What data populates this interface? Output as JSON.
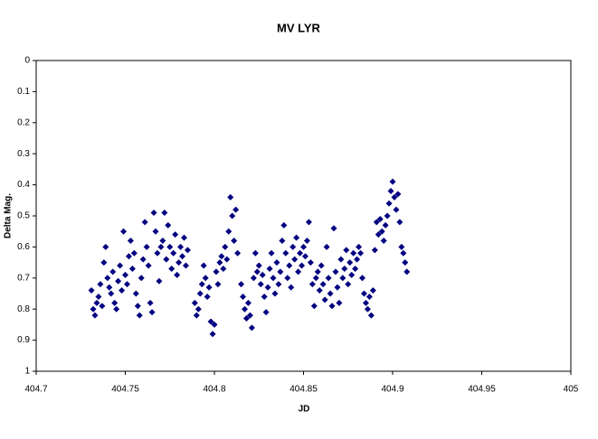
{
  "chart_data": {
    "type": "scatter",
    "title": "MV LYR",
    "x_label": "JD",
    "y_label": "Delta Mag.",
    "color": "#000080",
    "marker": "diamond",
    "invert_y": true,
    "grid": false,
    "xlim": [
      404.7,
      405
    ],
    "xticks": [
      404.7,
      404.75,
      404.8,
      404.85,
      404.9,
      404.95,
      405
    ],
    "ylim": [
      0,
      1
    ],
    "yticks": [
      0,
      0.1,
      0.2,
      0.3,
      0.4,
      0.5,
      0.6,
      0.7,
      0.8,
      0.9,
      1
    ],
    "x": [
      404.731,
      404.732,
      404.733,
      404.734,
      404.735,
      404.736,
      404.737,
      404.738,
      404.739,
      404.74,
      404.741,
      404.742,
      404.743,
      404.744,
      404.745,
      404.746,
      404.747,
      404.748,
      404.749,
      404.75,
      404.751,
      404.752,
      404.753,
      404.754,
      404.755,
      404.756,
      404.757,
      404.758,
      404.759,
      404.76,
      404.761,
      404.762,
      404.763,
      404.764,
      404.765,
      404.766,
      404.767,
      404.768,
      404.769,
      404.77,
      404.771,
      404.772,
      404.773,
      404.774,
      404.775,
      404.776,
      404.777,
      404.778,
      404.779,
      404.78,
      404.781,
      404.782,
      404.783,
      404.784,
      404.785,
      404.789,
      404.79,
      404.791,
      404.792,
      404.793,
      404.794,
      404.795,
      404.796,
      404.797,
      404.798,
      404.799,
      404.8,
      404.801,
      404.802,
      404.803,
      404.804,
      404.805,
      404.806,
      404.807,
      404.808,
      404.809,
      404.81,
      404.811,
      404.812,
      404.813,
      404.815,
      404.816,
      404.817,
      404.818,
      404.819,
      404.82,
      404.821,
      404.822,
      404.823,
      404.824,
      404.825,
      404.826,
      404.827,
      404.828,
      404.829,
      404.83,
      404.831,
      404.832,
      404.833,
      404.834,
      404.835,
      404.836,
      404.837,
      404.838,
      404.839,
      404.84,
      404.841,
      404.842,
      404.843,
      404.844,
      404.845,
      404.846,
      404.847,
      404.848,
      404.849,
      404.85,
      404.851,
      404.852,
      404.853,
      404.854,
      404.855,
      404.856,
      404.857,
      404.858,
      404.859,
      404.86,
      404.861,
      404.862,
      404.863,
      404.864,
      404.865,
      404.866,
      404.867,
      404.868,
      404.869,
      404.87,
      404.871,
      404.872,
      404.873,
      404.874,
      404.875,
      404.876,
      404.877,
      404.878,
      404.879,
      404.88,
      404.881,
      404.882,
      404.883,
      404.884,
      404.885,
      404.886,
      404.887,
      404.888,
      404.889,
      404.89,
      404.891,
      404.892,
      404.893,
      404.894,
      404.895,
      404.896,
      404.897,
      404.898,
      404.899,
      404.9,
      404.901,
      404.902,
      404.903,
      404.904,
      404.905,
      404.906,
      404.907,
      404.908
    ],
    "values": [
      0.74,
      0.8,
      0.82,
      0.78,
      0.76,
      0.72,
      0.79,
      0.65,
      0.6,
      0.7,
      0.73,
      0.75,
      0.68,
      0.78,
      0.8,
      0.71,
      0.66,
      0.74,
      0.55,
      0.69,
      0.72,
      0.63,
      0.58,
      0.67,
      0.62,
      0.75,
      0.79,
      0.82,
      0.7,
      0.64,
      0.52,
      0.6,
      0.66,
      0.78,
      0.81,
      0.49,
      0.55,
      0.62,
      0.71,
      0.6,
      0.58,
      0.49,
      0.64,
      0.53,
      0.6,
      0.67,
      0.62,
      0.56,
      0.69,
      0.65,
      0.6,
      0.63,
      0.57,
      0.66,
      0.61,
      0.78,
      0.82,
      0.8,
      0.75,
      0.72,
      0.66,
      0.7,
      0.76,
      0.73,
      0.84,
      0.88,
      0.85,
      0.68,
      0.72,
      0.65,
      0.63,
      0.67,
      0.6,
      0.64,
      0.55,
      0.44,
      0.5,
      0.58,
      0.48,
      0.62,
      0.72,
      0.76,
      0.8,
      0.83,
      0.78,
      0.82,
      0.86,
      0.7,
      0.62,
      0.68,
      0.66,
      0.72,
      0.69,
      0.76,
      0.81,
      0.73,
      0.67,
      0.62,
      0.7,
      0.75,
      0.65,
      0.72,
      0.68,
      0.58,
      0.53,
      0.62,
      0.7,
      0.66,
      0.73,
      0.6,
      0.64,
      0.57,
      0.68,
      0.62,
      0.66,
      0.6,
      0.63,
      0.58,
      0.52,
      0.65,
      0.72,
      0.79,
      0.7,
      0.68,
      0.74,
      0.66,
      0.72,
      0.77,
      0.6,
      0.7,
      0.75,
      0.79,
      0.54,
      0.68,
      0.73,
      0.78,
      0.64,
      0.7,
      0.67,
      0.61,
      0.72,
      0.65,
      0.69,
      0.62,
      0.67,
      0.64,
      0.6,
      0.62,
      0.7,
      0.75,
      0.78,
      0.8,
      0.76,
      0.82,
      0.74,
      0.61,
      0.52,
      0.56,
      0.51,
      0.55,
      0.58,
      0.53,
      0.5,
      0.46,
      0.42,
      0.39,
      0.44,
      0.48,
      0.43,
      0.52,
      0.6,
      0.62,
      0.65,
      0.68
    ]
  }
}
